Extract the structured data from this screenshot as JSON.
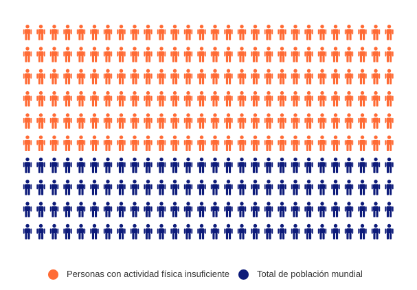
{
  "chart_data": {
    "type": "pictogram",
    "columns": 28,
    "series": [
      {
        "name": "Personas con actividad física insuficiente",
        "rows": 6,
        "color": "#ff6b35"
      },
      {
        "name": "Total de población mundial",
        "rows": 4,
        "color": "#0d1b7a"
      }
    ],
    "icon": "person-icon",
    "legend_position": "bottom-center"
  }
}
